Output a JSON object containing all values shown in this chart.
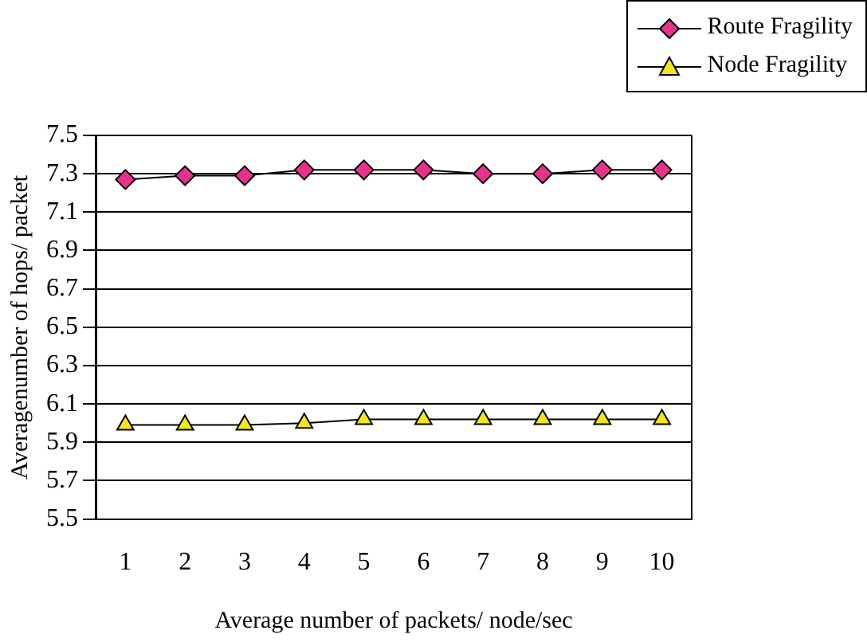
{
  "chart_data": {
    "type": "line",
    "xlabel": "Average number of packets/ node/sec",
    "ylabel": "Averagenumber of hops/ packet",
    "categories": [
      "1",
      "2",
      "3",
      "4",
      "5",
      "6",
      "7",
      "8",
      "9",
      "10"
    ],
    "series": [
      {
        "name": "Route Fragility",
        "color": "#e8318a",
        "marker": "diamond",
        "values": [
          7.27,
          7.29,
          7.29,
          7.32,
          7.32,
          7.32,
          7.3,
          7.3,
          7.32,
          7.32
        ]
      },
      {
        "name": "Node Fragility",
        "color": "#f5e61a",
        "marker": "triangle",
        "values": [
          5.99,
          5.99,
          5.99,
          6.0,
          6.02,
          6.02,
          6.02,
          6.02,
          6.02,
          6.02
        ]
      }
    ],
    "ylim": [
      5.5,
      7.5
    ],
    "yticks": [
      5.5,
      5.7,
      5.9,
      6.1,
      6.3,
      6.5,
      6.7,
      6.9,
      7.1,
      7.3,
      7.5
    ],
    "grid": "y",
    "legend": "top right",
    "line_style": "solid"
  }
}
